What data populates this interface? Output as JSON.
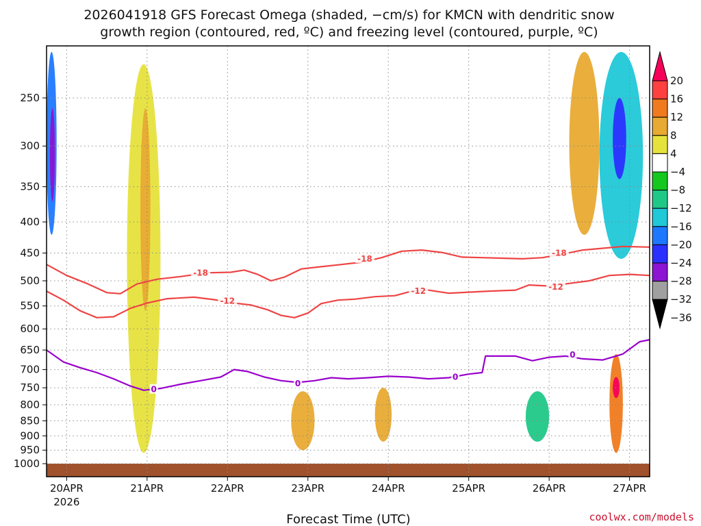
{
  "title_line1": "2026041918 GFS Forecast Omega (shaded, −cm/s) for KMCN with dendritic snow",
  "title_line2": "growth region (contoured, red, ºC) and freezing level (contoured, purple, ºC)",
  "credit": "coolwx.com/models",
  "chart_data": {
    "type": "heatmap",
    "xlabel": "Forecast Time (UTC)",
    "x_ticks": [
      {
        "label": "20APR",
        "sub": "2026",
        "hours": 6
      },
      {
        "label": "21APR",
        "sub": "",
        "hours": 30
      },
      {
        "label": "22APR",
        "sub": "",
        "hours": 54
      },
      {
        "label": "23APR",
        "sub": "",
        "hours": 78
      },
      {
        "label": "24APR",
        "sub": "",
        "hours": 102
      },
      {
        "label": "25APR",
        "sub": "",
        "hours": 126
      },
      {
        "label": "26APR",
        "sub": "",
        "hours": 150
      },
      {
        "label": "27APR",
        "sub": "",
        "hours": 174
      }
    ],
    "x_range_hours": [
      0,
      180
    ],
    "y_ticks": [
      "250",
      "300",
      "350",
      "400",
      "450",
      "500",
      "550",
      "600",
      "650",
      "700",
      "750",
      "800",
      "850",
      "900",
      "950",
      "1000"
    ],
    "y_range_hpa": [
      200,
      1020
    ],
    "colorbar": {
      "labels": [
        "20",
        "16",
        "12",
        "8",
        "4",
        "−4",
        "−8",
        "−12",
        "−16",
        "−20",
        "−24",
        "−28",
        "−32",
        "−36"
      ],
      "colors": [
        "#f5005a",
        "#ff4040",
        "#f07a1e",
        "#e8aa32",
        "#e6e23c",
        "#ffffff",
        "#16c81e",
        "#20c888",
        "#20c8d8",
        "#1e78ff",
        "#2a30ff",
        "#8c14d2",
        "#a0a0a0",
        "#000000"
      ]
    },
    "contours": [
      {
        "name": "-18",
        "color": "#ee4444",
        "points": [
          [
            0,
            470
          ],
          [
            6,
            490
          ],
          [
            12,
            505
          ],
          [
            18,
            523
          ],
          [
            22,
            525
          ],
          [
            27,
            506
          ],
          [
            33,
            497
          ],
          [
            40,
            492
          ],
          [
            48,
            485
          ],
          [
            55,
            484
          ],
          [
            59,
            480
          ],
          [
            63,
            488
          ],
          [
            67,
            500
          ],
          [
            71,
            493
          ],
          [
            76,
            478
          ],
          [
            82,
            474
          ],
          [
            88,
            470
          ],
          [
            94,
            466
          ],
          [
            100,
            458
          ],
          [
            106,
            447
          ],
          [
            112,
            445
          ],
          [
            118,
            449
          ],
          [
            124,
            457
          ],
          [
            130,
            458
          ],
          [
            136,
            459
          ],
          [
            142,
            460
          ],
          [
            148,
            458
          ],
          [
            154,
            452
          ],
          [
            160,
            445
          ],
          [
            166,
            442
          ],
          [
            172,
            439
          ],
          [
            180,
            440
          ]
        ],
        "labels": [
          {
            "text": "-18",
            "at": [
              46,
              485
            ]
          },
          {
            "text": "-18",
            "at": [
              95,
              460
            ]
          },
          {
            "text": "-18",
            "at": [
              153,
              450
            ]
          }
        ]
      },
      {
        "name": "-12",
        "color": "#ee4444",
        "points": [
          [
            0,
            520
          ],
          [
            5,
            538
          ],
          [
            10,
            560
          ],
          [
            15,
            575
          ],
          [
            20,
            573
          ],
          [
            25,
            555
          ],
          [
            30,
            544
          ],
          [
            36,
            535
          ],
          [
            44,
            532
          ],
          [
            50,
            537
          ],
          [
            56,
            544
          ],
          [
            61,
            548
          ],
          [
            66,
            558
          ],
          [
            70,
            570
          ],
          [
            74,
            575
          ],
          [
            78,
            565
          ],
          [
            82,
            545
          ],
          [
            87,
            538
          ],
          [
            92,
            536
          ],
          [
            98,
            531
          ],
          [
            104,
            529
          ],
          [
            109,
            520
          ],
          [
            114,
            518
          ],
          [
            120,
            524
          ],
          [
            126,
            522
          ],
          [
            132,
            520
          ],
          [
            140,
            518
          ],
          [
            144,
            508
          ],
          [
            150,
            510
          ],
          [
            156,
            505
          ],
          [
            162,
            500
          ],
          [
            168,
            490
          ],
          [
            174,
            488
          ],
          [
            180,
            490
          ]
        ],
        "labels": [
          {
            "text": "-12",
            "at": [
              54,
              540
            ]
          },
          {
            "text": "-12",
            "at": [
              111,
              520
            ]
          },
          {
            "text": "-12",
            "at": [
              152,
              512
            ]
          }
        ]
      },
      {
        "name": "0",
        "color": "#9900cc",
        "points": [
          [
            0,
            650
          ],
          [
            5,
            680
          ],
          [
            10,
            695
          ],
          [
            15,
            708
          ],
          [
            20,
            725
          ],
          [
            25,
            745
          ],
          [
            29,
            757
          ],
          [
            34,
            752
          ],
          [
            40,
            740
          ],
          [
            46,
            730
          ],
          [
            52,
            720
          ],
          [
            56,
            700
          ],
          [
            60,
            705
          ],
          [
            65,
            720
          ],
          [
            70,
            730
          ],
          [
            75,
            735
          ],
          [
            80,
            730
          ],
          [
            85,
            722
          ],
          [
            90,
            725
          ],
          [
            96,
            722
          ],
          [
            102,
            718
          ],
          [
            108,
            720
          ],
          [
            114,
            725
          ],
          [
            120,
            722
          ],
          [
            126,
            712
          ],
          [
            130,
            708
          ],
          [
            131,
            665
          ],
          [
            136,
            665
          ],
          [
            140,
            665
          ],
          [
            145,
            677
          ],
          [
            150,
            668
          ],
          [
            155,
            665
          ],
          [
            160,
            672
          ],
          [
            166,
            675
          ],
          [
            172,
            660
          ],
          [
            177,
            630
          ],
          [
            180,
            625
          ]
        ],
        "labels": [
          {
            "text": "0",
            "at": [
              32,
              755
            ]
          },
          {
            "text": "0",
            "at": [
              75,
              738
            ]
          },
          {
            "text": "0",
            "at": [
              122,
              720
            ]
          },
          {
            "text": "0",
            "at": [
              157,
              662
            ]
          }
        ]
      }
    ],
    "shaded_regions": [
      {
        "name": "early-sinking-column",
        "hours": [
          0,
          3
        ],
        "hpa": [
          210,
          420
        ],
        "value": -16
      },
      {
        "name": "early-sinking-core",
        "hours": [
          1,
          2.5
        ],
        "hpa": [
          260,
          370
        ],
        "value": -24
      },
      {
        "name": "rising-band-21apr",
        "hours": [
          24,
          34
        ],
        "hpa": [
          220,
          960
        ],
        "value": 6
      },
      {
        "name": "rising-core-21apr",
        "hours": [
          28,
          31
        ],
        "hpa": [
          260,
          560
        ],
        "value": 10
      },
      {
        "name": "low-level-rise-23apr",
        "hours": [
          73,
          80
        ],
        "hpa": [
          760,
          950
        ],
        "value": 8
      },
      {
        "name": "low-level-rise-24apr",
        "hours": [
          98,
          103
        ],
        "hpa": [
          750,
          920
        ],
        "value": 8
      },
      {
        "name": "upper-rise-26apr",
        "hours": [
          156,
          165
        ],
        "hpa": [
          210,
          420
        ],
        "value": 8
      },
      {
        "name": "strong-sink-27apr",
        "hours": [
          165,
          178
        ],
        "hpa": [
          210,
          460
        ],
        "value": -12
      },
      {
        "name": "strong-sink-core-27apr",
        "hours": [
          169,
          173
        ],
        "hpa": [
          250,
          340
        ],
        "value": -22
      },
      {
        "name": "rise-27apr-low",
        "hours": [
          168,
          172
        ],
        "hpa": [
          660,
          960
        ],
        "value": 12
      },
      {
        "name": "rise-27apr-core",
        "hours": [
          169,
          171
        ],
        "hpa": [
          720,
          780
        ],
        "value": 20
      },
      {
        "name": "sink-26apr-low",
        "hours": [
          143,
          150
        ],
        "hpa": [
          760,
          920
        ],
        "value": -8
      }
    ]
  }
}
